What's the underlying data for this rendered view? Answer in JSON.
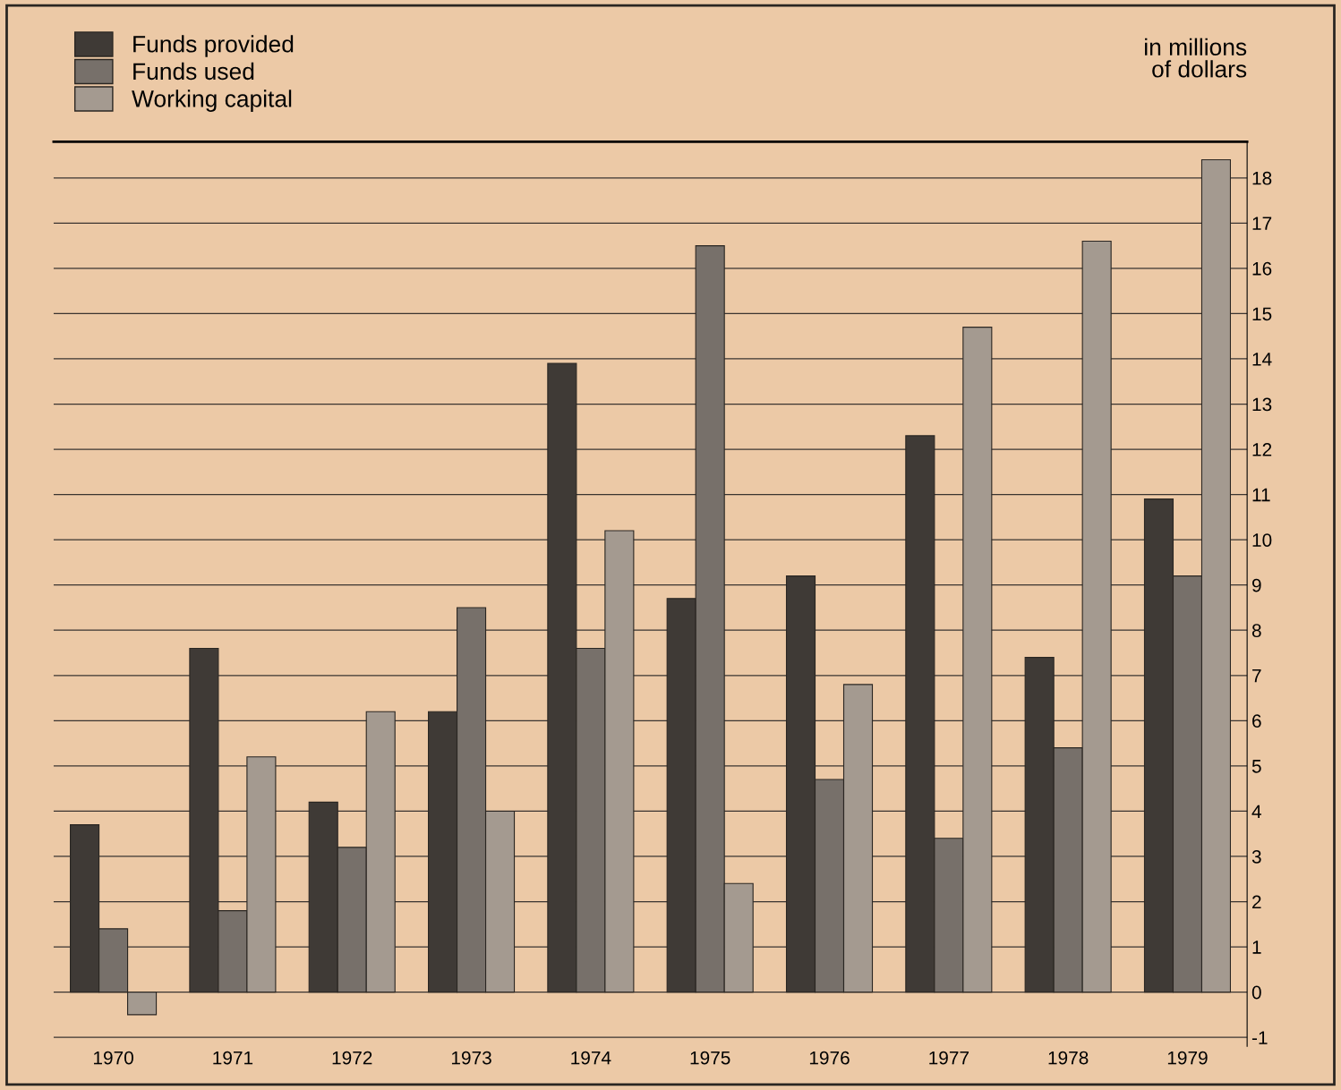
{
  "chart_data": {
    "type": "bar",
    "ylabel": "in millions\nof dollars",
    "categories": [
      "1970",
      "1971",
      "1972",
      "1973",
      "1974",
      "1975",
      "1976",
      "1977",
      "1978",
      "1979"
    ],
    "series": [
      {
        "name": "Funds provided",
        "color": "#3f3a36",
        "values": [
          3.7,
          7.6,
          4.2,
          6.2,
          13.9,
          8.7,
          9.2,
          12.3,
          7.4,
          10.9
        ]
      },
      {
        "name": "Funds used",
        "color": "#77706a",
        "values": [
          1.4,
          1.8,
          3.2,
          8.5,
          7.6,
          16.5,
          4.7,
          3.4,
          5.4,
          9.2
        ]
      },
      {
        "name": "Working capital",
        "color": "#a49a90",
        "values": [
          -0.5,
          5.2,
          6.2,
          4.0,
          10.2,
          2.4,
          6.8,
          14.7,
          16.6,
          18.4
        ]
      }
    ],
    "ylim": [
      -1.2,
      18.8
    ],
    "yticks": [
      -1,
      0,
      1,
      2,
      3,
      4,
      5,
      6,
      7,
      8,
      9,
      10,
      11,
      12,
      13,
      14,
      15,
      16,
      17,
      18
    ],
    "grid": "y",
    "legend": "top left"
  }
}
